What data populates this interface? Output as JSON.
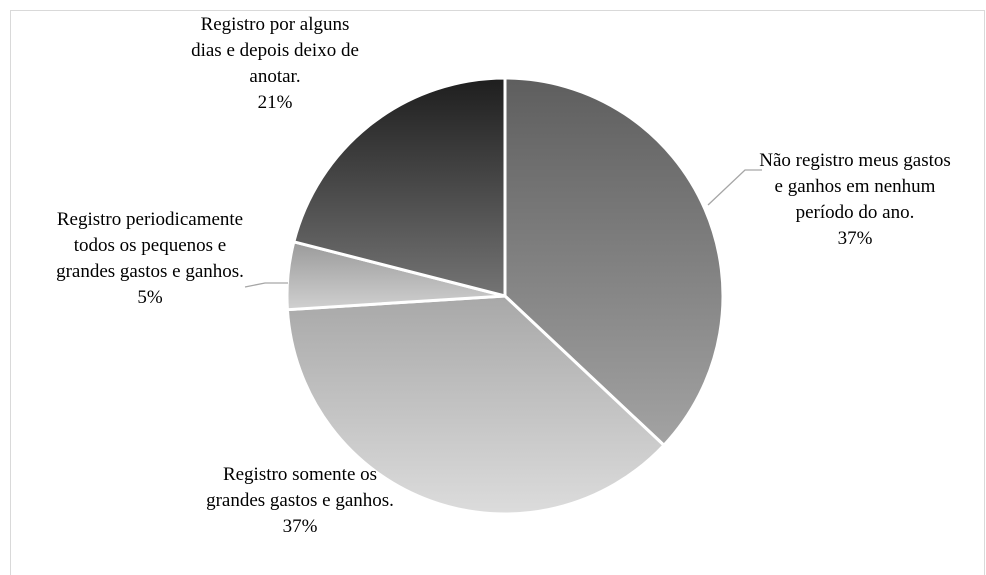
{
  "chart_data": {
    "type": "pie",
    "categories": [
      "Não registro meus gastos e ganhos em nenhum período do ano.",
      "Registro somente os grandes gastos e ganhos.",
      "Registro periodicamente todos os pequenos e grandes gastos e ganhos.",
      "Registro por alguns dias e depois deixo de anotar."
    ],
    "values": [
      37,
      37,
      5,
      21
    ],
    "value_labels": [
      "37%",
      "37%",
      "5%",
      "21%"
    ],
    "colors": [
      [
        "#5e5e5e",
        "#a3a3a3"
      ],
      [
        "#a8a8a8",
        "#dcdcdc"
      ],
      [
        "#9a9a9a",
        "#d0d0d0"
      ],
      [
        "#1e1e1e",
        "#747474"
      ]
    ]
  }
}
